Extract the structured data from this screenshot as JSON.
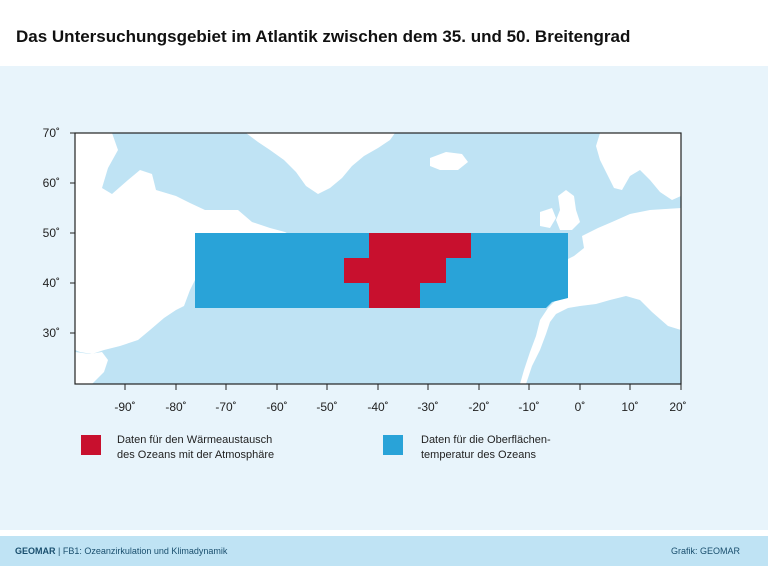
{
  "title": "Das Untersuchungsgebiet im Atlantik zwischen dem 35. und 50. Breitengrad",
  "map": {
    "lon_range": [
      -100,
      20
    ],
    "lat_range": [
      20,
      70
    ],
    "x_ticks": [
      "-90˚",
      "-80˚",
      "-70˚",
      "-60˚",
      "-50˚",
      "-40˚",
      "-30˚",
      "-20˚",
      "-10˚",
      "0˚",
      "10˚",
      "20˚"
    ],
    "y_ticks": [
      "70˚",
      "60˚",
      "50˚",
      "40˚",
      "30˚"
    ],
    "colors": {
      "ocean": "#bfe3f4",
      "land": "#ffffff",
      "sst": "#29a3d8",
      "heat": "#c8102e"
    }
  },
  "legend": {
    "heat_line1": "Daten für den Wärmeaustausch",
    "heat_line2": "des Ozeans mit der Atmosphäre",
    "sst_line1": "Daten für die Oberflächen-",
    "sst_line2": "temperatur des Ozeans"
  },
  "footer": {
    "org": "GEOMAR",
    "separator": " | ",
    "dept": "FB1: Ozeanzirkulation und Klimadynamik",
    "credit": "Grafik: GEOMAR"
  }
}
